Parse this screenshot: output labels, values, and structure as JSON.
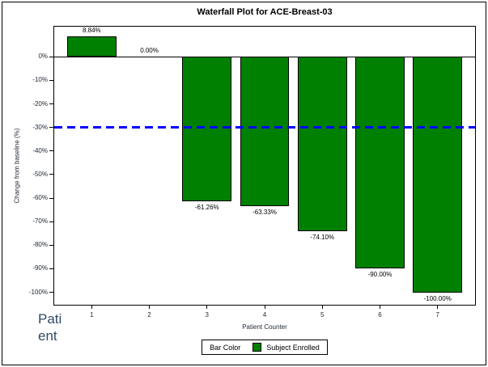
{
  "title": "Waterfall Plot for ACE-Breast-03",
  "side_label": {
    "full_text": "Patient",
    "line1": "Pati",
    "line2": "ent",
    "color": "#2e4a66"
  },
  "legend": {
    "title": "Bar Color",
    "entry_label": "Subject Enrolled",
    "swatch_color": "#008000"
  },
  "colors": {
    "bar": "#008000",
    "bar_border": "#000000",
    "reference_line": "#0000ff",
    "axis": "#000000",
    "tick_text": "#222a33",
    "title_text": "#000000"
  },
  "chart_data": {
    "type": "bar",
    "title": "Waterfall Plot for ACE-Breast-03",
    "xlabel": "Patient Counter",
    "ylabel": "Change from baseline (%)",
    "categories": [
      "1",
      "2",
      "3",
      "4",
      "5",
      "6",
      "7"
    ],
    "values": [
      8.84,
      0.0,
      -61.26,
      -63.33,
      -74.1,
      -90.0,
      -100.0
    ],
    "bar_labels": [
      "8.84%",
      "0.00%",
      "-61.26%",
      "-63.33%",
      "-74.10%",
      "-90.00%",
      "-100.00%"
    ],
    "y_tick_values": [
      0,
      -10,
      -20,
      -30,
      -40,
      -50,
      -60,
      -70,
      -80,
      -90,
      -100
    ],
    "y_tick_labels": [
      "0%",
      "-10%",
      "-20%",
      "-30%",
      "-40%",
      "-50%",
      "-60%",
      "-70%",
      "-80%",
      "-90%",
      "-100%"
    ],
    "ylim": [
      -105.3,
      12.8
    ],
    "xlim": [
      0.35,
      7.65
    ],
    "bar_width_units": 0.85,
    "bar_color": "#008000",
    "reference_line": {
      "y": -30,
      "color": "#0000ff",
      "style": "dashed"
    },
    "legend_title": "Bar Color",
    "legend_entries": [
      {
        "label": "Subject Enrolled",
        "color": "#008000"
      }
    ],
    "legend_position": "bottom",
    "grid": false
  }
}
